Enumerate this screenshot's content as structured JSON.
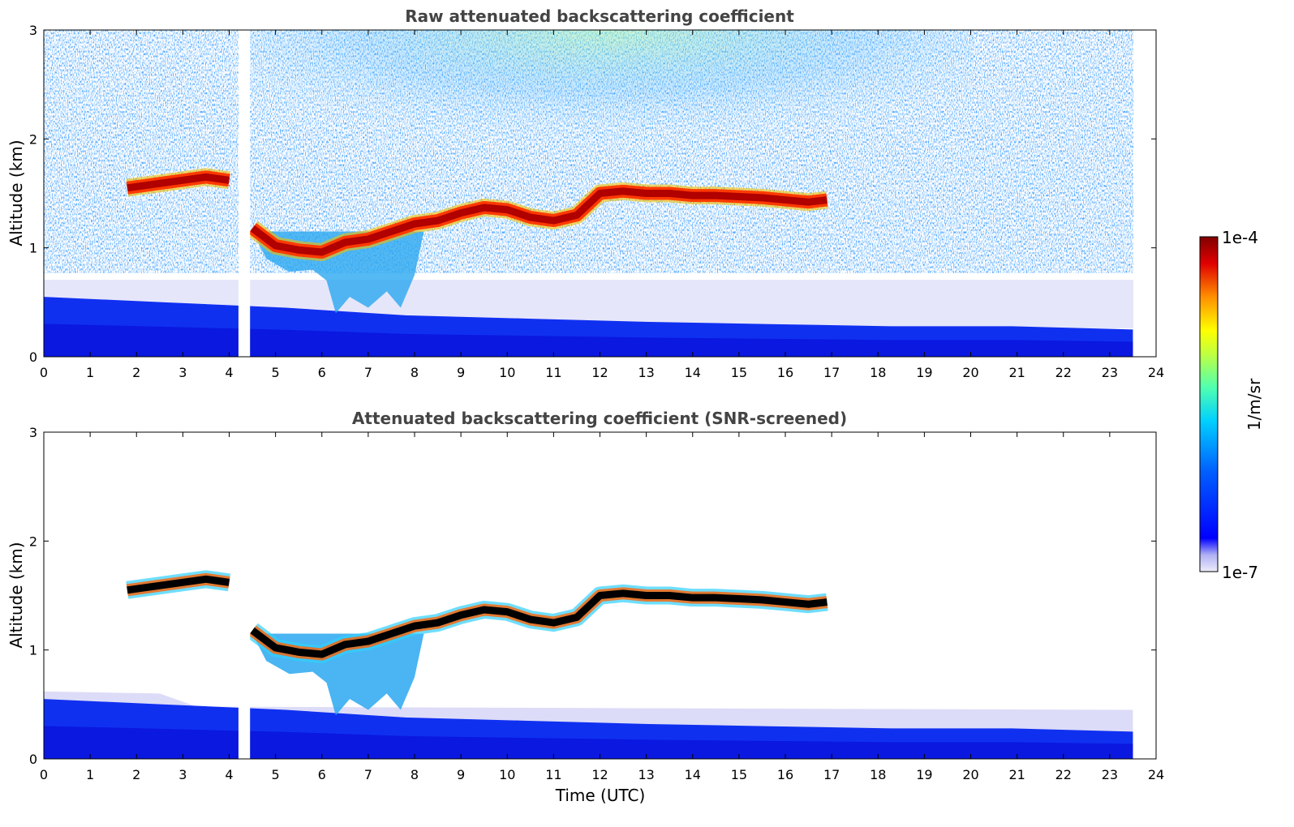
{
  "chart_data": [
    {
      "type": "heatmap",
      "title": "Raw attenuated backscattering coefficient",
      "xlabel": "",
      "ylabel": "Altitude (km)",
      "xlim": [
        0,
        24
      ],
      "ylim": [
        0,
        3
      ],
      "xticks": [
        "0",
        "1",
        "2",
        "3",
        "4",
        "5",
        "6",
        "7",
        "8",
        "9",
        "10",
        "11",
        "12",
        "13",
        "14",
        "15",
        "16",
        "17",
        "18",
        "19",
        "20",
        "21",
        "22",
        "23",
        "24"
      ],
      "yticks": [
        "0",
        "1",
        "2",
        "3"
      ],
      "data_extent_hours": [
        0,
        23.5
      ],
      "gap_hours": [
        4.2,
        4.45
      ],
      "colorscale": "jet",
      "cloud_layer": {
        "time": [
          1.8,
          3.5,
          4.0,
          4.5,
          5.0,
          5.5,
          6.0,
          6.5,
          7.0,
          7.5,
          8.0,
          8.5,
          9.0,
          9.5,
          10.0,
          10.5,
          11.0,
          11.5,
          12.0,
          12.5,
          13.0,
          13.5,
          14.0,
          14.5,
          15.0,
          15.5,
          16.0,
          16.5,
          16.9
        ],
        "altitude_km": [
          1.55,
          1.65,
          1.62,
          1.18,
          1.02,
          0.98,
          0.96,
          1.05,
          1.08,
          1.15,
          1.22,
          1.25,
          1.32,
          1.37,
          1.35,
          1.28,
          1.25,
          1.3,
          1.5,
          1.52,
          1.5,
          1.5,
          1.48,
          1.48,
          1.47,
          1.46,
          1.44,
          1.42,
          1.44
        ]
      },
      "boundary_layer_top_km": [
        0.55,
        0.5,
        0.45,
        0.38,
        0.35,
        0.32,
        0.3,
        0.28,
        0.28,
        0.25
      ]
    },
    {
      "type": "heatmap",
      "title": "Attenuated backscattering coefficient (SNR-screened)",
      "xlabel": "Time (UTC)",
      "ylabel": "Altitude (km)",
      "xlim": [
        0,
        24
      ],
      "ylim": [
        0,
        3
      ],
      "xticks": [
        "0",
        "1",
        "2",
        "3",
        "4",
        "5",
        "6",
        "7",
        "8",
        "9",
        "10",
        "11",
        "12",
        "13",
        "14",
        "15",
        "16",
        "17",
        "18",
        "19",
        "20",
        "21",
        "22",
        "23",
        "24"
      ],
      "yticks": [
        "0",
        "1",
        "2",
        "3"
      ],
      "data_extent_hours": [
        0,
        23.5
      ],
      "gap_hours": [
        4.2,
        4.45
      ],
      "colorscale": "jet",
      "cloud_layer_color": "#000000"
    }
  ],
  "colorbar": {
    "max_label": "1e-4",
    "min_label": "1e-7",
    "unit_label": "1/m/sr",
    "colors": [
      "#e8e8f8",
      "#c8c8f0",
      "#9696ee",
      "#0000ff",
      "#0050ff",
      "#00a0ff",
      "#00e0f0",
      "#40ffb0",
      "#a0ff60",
      "#ffff00",
      "#ffb000",
      "#ff5000",
      "#e00000",
      "#800000"
    ]
  }
}
